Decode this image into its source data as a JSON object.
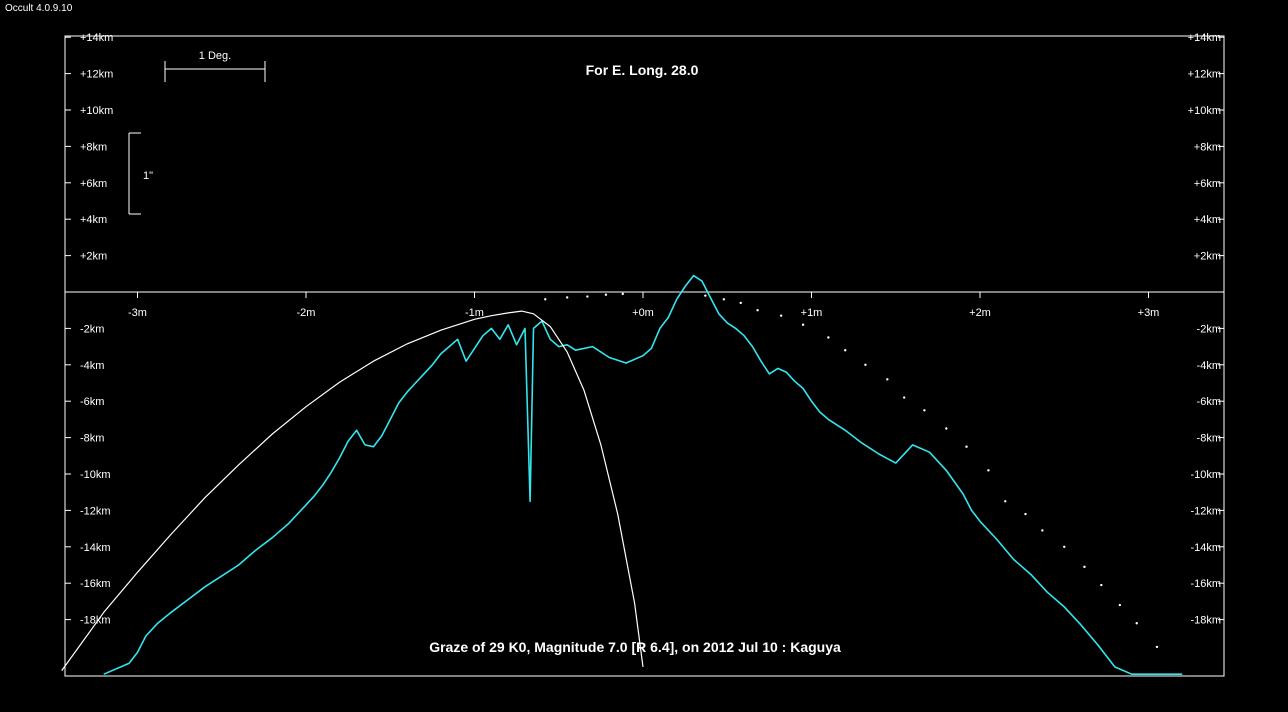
{
  "app": {
    "title": "Occult 4.0.9.10"
  },
  "chart_data": {
    "type": "line",
    "title": "For E. Long. 28.0",
    "subtitle": "Graze of  29 K0,  Magnitude 7.0 [R 6.4],  on 2012 Jul 10  :  Kaguya",
    "x_unit": "minutes",
    "y_unit": "km",
    "xlim": [
      -3.45,
      3.45
    ],
    "ylim": [
      -21,
      14
    ],
    "x_ticks": [
      -3,
      -2,
      -1,
      0,
      1,
      2,
      3
    ],
    "x_tick_labels": [
      "-3m",
      "-2m",
      "-1m",
      "+0m",
      "+1m",
      "+2m",
      "+3m"
    ],
    "y_ticks_upper": [
      14,
      12,
      10,
      8,
      6,
      4,
      2
    ],
    "y_tick_labels_upper": [
      "+14km",
      "+12km",
      "+10km",
      "+8km",
      "+6km",
      "+4km",
      "+2km"
    ],
    "y_ticks_lower": [
      -2,
      -4,
      -6,
      -8,
      -10,
      -12,
      -14,
      -16,
      -18
    ],
    "y_tick_labels_lower": [
      "-2km",
      "-4km",
      "-6km",
      "-8km",
      "-10km",
      "-12km",
      "-14km",
      "-16km",
      "-18km"
    ],
    "scale_bars": {
      "degree_label": "1 Deg.",
      "arcsec_label": "1\""
    },
    "series": [
      {
        "color": "#33e5ee",
        "kind": "limb_profile",
        "x": [
          -3.2,
          -3.05,
          -3.0,
          -2.95,
          -2.88,
          -2.8,
          -2.7,
          -2.6,
          -2.5,
          -2.4,
          -2.3,
          -2.2,
          -2.1,
          -2.0,
          -1.95,
          -1.9,
          -1.85,
          -1.8,
          -1.75,
          -1.7,
          -1.65,
          -1.6,
          -1.55,
          -1.5,
          -1.45,
          -1.4,
          -1.35,
          -1.3,
          -1.25,
          -1.2,
          -1.15,
          -1.1,
          -1.05,
          -1.0,
          -0.95,
          -0.9,
          -0.85,
          -0.8,
          -0.75,
          -0.7,
          -0.67,
          -0.65,
          -0.6,
          -0.55,
          -0.5,
          -0.45,
          -0.4,
          -0.3,
          -0.2,
          -0.1,
          0.0,
          0.05,
          0.1,
          0.15,
          0.2,
          0.25,
          0.3,
          0.35,
          0.4,
          0.45,
          0.5,
          0.55,
          0.6,
          0.65,
          0.7,
          0.75,
          0.8,
          0.85,
          0.9,
          0.95,
          1.0,
          1.05,
          1.1,
          1.2,
          1.3,
          1.4,
          1.5,
          1.6,
          1.7,
          1.8,
          1.9,
          1.95,
          2.0,
          2.1,
          2.2,
          2.3,
          2.4,
          2.5,
          2.6,
          2.7,
          2.8,
          2.9,
          3.0,
          3.1,
          3.2
        ],
        "y": [
          -21.0,
          -20.4,
          -19.8,
          -18.9,
          -18.2,
          -17.6,
          -16.9,
          -16.2,
          -15.6,
          -15.0,
          -14.2,
          -13.5,
          -12.7,
          -11.7,
          -11.2,
          -10.6,
          -9.9,
          -9.1,
          -8.2,
          -7.6,
          -8.4,
          -8.5,
          -7.9,
          -7.0,
          -6.1,
          -5.5,
          -5.0,
          -4.5,
          -4.0,
          -3.4,
          -3.0,
          -2.6,
          -3.8,
          -3.1,
          -2.4,
          -2.0,
          -2.6,
          -1.8,
          -2.9,
          -2.0,
          -11.5,
          -2.0,
          -1.6,
          -2.6,
          -3.0,
          -2.9,
          -3.2,
          -3.0,
          -3.6,
          -3.9,
          -3.5,
          -3.1,
          -2.0,
          -1.4,
          -0.4,
          0.3,
          0.9,
          0.6,
          -0.3,
          -1.2,
          -1.7,
          -2.0,
          -2.4,
          -3.0,
          -3.8,
          -4.5,
          -4.2,
          -4.4,
          -4.9,
          -5.3,
          -6.0,
          -6.6,
          -7.0,
          -7.6,
          -8.3,
          -8.9,
          -9.4,
          -8.4,
          -8.8,
          -9.8,
          -11.1,
          -12.0,
          -12.6,
          -13.6,
          -14.7,
          -15.5,
          -16.5,
          -17.3,
          -18.3,
          -19.4,
          -20.6,
          -21.0,
          -21.0,
          -21.0,
          -21.0
        ]
      },
      {
        "color": "#ffffff",
        "kind": "mean_limb_curve",
        "x": [
          -3.45,
          -3.2,
          -3.0,
          -2.8,
          -2.6,
          -2.4,
          -2.2,
          -2.0,
          -1.8,
          -1.6,
          -1.4,
          -1.2,
          -1.0,
          -0.9,
          -0.8,
          -0.72,
          -0.65,
          -0.55,
          -0.45,
          -0.35,
          -0.25,
          -0.15,
          -0.05,
          0.0
        ],
        "y": [
          -20.8,
          -17.6,
          -15.4,
          -13.3,
          -11.3,
          -9.5,
          -7.8,
          -6.3,
          -4.95,
          -3.8,
          -2.85,
          -2.1,
          -1.5,
          -1.3,
          -1.15,
          -1.05,
          -1.2,
          -1.9,
          -3.3,
          -5.4,
          -8.4,
          -12.2,
          -17.1,
          -20.6
        ]
      },
      {
        "color": "#ffffff",
        "kind": "dotted_limit",
        "x": [
          -0.58,
          -0.45,
          -0.33,
          -0.22,
          -0.12,
          0.37,
          0.48,
          0.58,
          0.68,
          0.82,
          0.95,
          1.1,
          1.2,
          1.32,
          1.45,
          1.55,
          1.67,
          1.8,
          1.92,
          2.05,
          2.15,
          2.27,
          2.37,
          2.5,
          2.62,
          2.72,
          2.83,
          2.93,
          3.05
        ],
        "y": [
          -0.4,
          -0.3,
          -0.25,
          -0.15,
          -0.1,
          -0.2,
          -0.4,
          -0.6,
          -1.0,
          -1.3,
          -1.8,
          -2.5,
          -3.2,
          -4.0,
          -4.8,
          -5.8,
          -6.5,
          -7.5,
          -8.5,
          -9.8,
          -11.5,
          -12.2,
          -13.1,
          -14.0,
          -15.1,
          -16.1,
          -17.2,
          -18.2,
          -19.5
        ]
      }
    ]
  }
}
